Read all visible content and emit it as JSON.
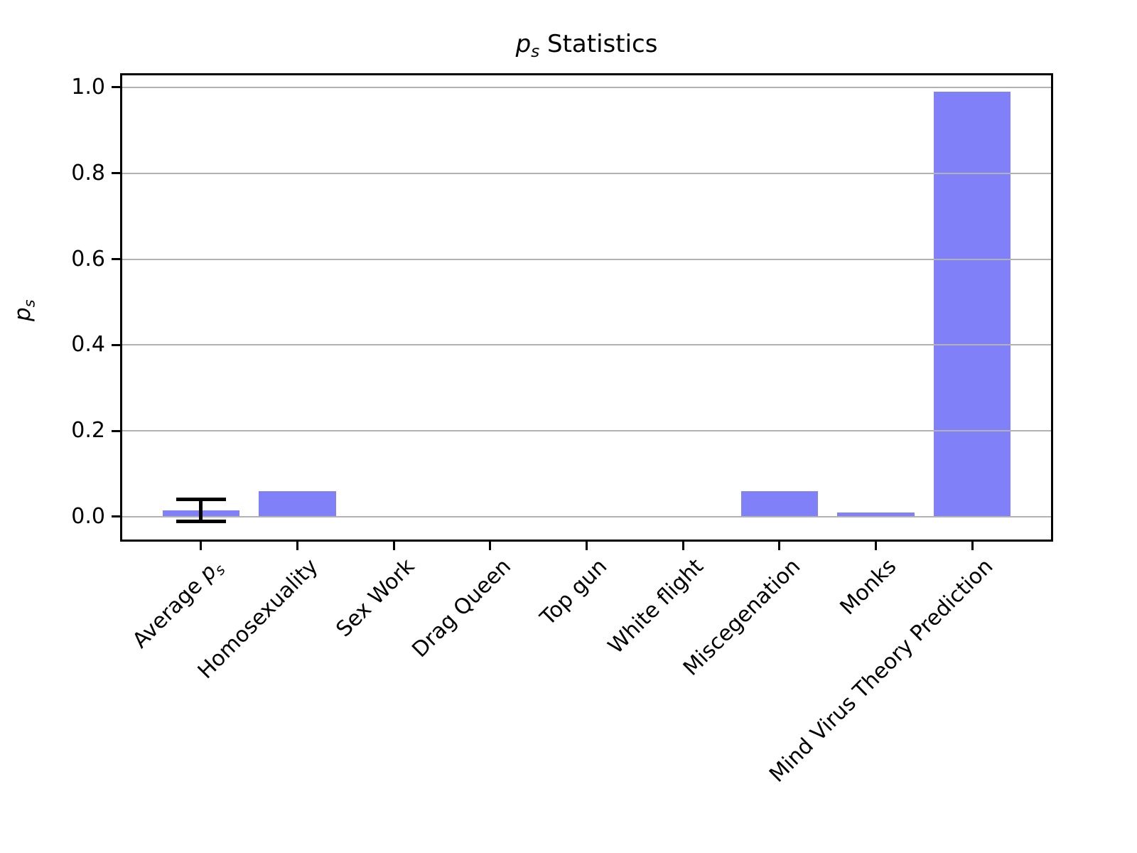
{
  "figure": {
    "title": {
      "math": "p",
      "sub": "s",
      "rest": " Statistics"
    },
    "ylabel": {
      "math": "p",
      "sub": "s"
    }
  },
  "chart_data": {
    "type": "bar",
    "title": "p_s Statistics",
    "xlabel": "",
    "ylabel": "p_s",
    "categories": [
      "Average p_s",
      "Homosexuality",
      "Sex Work",
      "Drag Queen",
      "Top gun",
      "White flight",
      "Miscegenation",
      "Monks",
      "Mind Virus Theory Prediction"
    ],
    "category_rich": [
      {
        "prefix": "Average ",
        "math": "p",
        "sub": "s"
      },
      {
        "text": "Homosexuality"
      },
      {
        "text": "Sex Work"
      },
      {
        "text": "Drag Queen"
      },
      {
        "text": "Top gun"
      },
      {
        "text": "White flight"
      },
      {
        "text": "Miscegenation"
      },
      {
        "text": "Monks"
      },
      {
        "text": "Mind Virus Theory Prediction"
      }
    ],
    "values": [
      0.015,
      0.06,
      0.0,
      0.0,
      0.0,
      0.0,
      0.06,
      0.01,
      0.99
    ],
    "errors": [
      0.025,
      null,
      null,
      null,
      null,
      null,
      null,
      null,
      null
    ],
    "ytick_labels": [
      "0.0",
      "0.2",
      "0.4",
      "0.6",
      "0.8",
      "1.0"
    ],
    "ytick_values": [
      0.0,
      0.2,
      0.4,
      0.6,
      0.8,
      1.0
    ],
    "ylim": [
      -0.058,
      1.033
    ],
    "xlim": [
      -0.84,
      8.84
    ],
    "bar_width_units": 0.8,
    "grid": "on",
    "legend": null,
    "bar_color": "#8080f8",
    "grid_color": "#b2b2b2",
    "axis_color": "#000000",
    "error_color": "#000000",
    "background": "#ffffff"
  }
}
